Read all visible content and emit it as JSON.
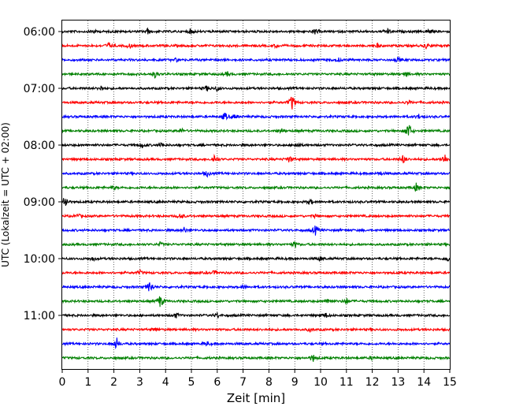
{
  "chart_data": {
    "type": "line",
    "xlabel": "Zeit  [min]",
    "ylabel": "UTC (Lokalzeit = UTC + 02:00)",
    "xlim": [
      0,
      15
    ],
    "x_ticks": [
      "0",
      "1",
      "2",
      "3",
      "4",
      "5",
      "6",
      "7",
      "8",
      "9",
      "10",
      "11",
      "12",
      "13",
      "14",
      "15"
    ],
    "y_tick_labels": [
      "06:00",
      "07:00",
      "08:00",
      "09:00",
      "10:00",
      "11:00"
    ],
    "grid": "vertical-dotted",
    "trace_colors": [
      "#000000",
      "#ff0000",
      "#0000ff",
      "#008000"
    ],
    "traces": [
      {
        "start": "06:00",
        "events": [
          [
            1.2,
            0.25
          ],
          [
            3.3,
            0.3
          ],
          [
            5.0,
            0.35
          ],
          [
            9.8,
            0.35
          ],
          [
            12.6,
            0.3
          ],
          [
            14.2,
            0.3
          ]
        ]
      },
      {
        "start": "06:15",
        "events": [
          [
            1.8,
            0.35
          ],
          [
            2.6,
            0.25
          ],
          [
            8.3,
            0.2
          ],
          [
            12.2,
            0.2
          ],
          [
            14.1,
            0.3
          ]
        ]
      },
      {
        "start": "06:30",
        "events": [
          [
            4.4,
            0.2
          ],
          [
            10.7,
            0.2
          ],
          [
            13.0,
            0.25
          ]
        ]
      },
      {
        "start": "06:45",
        "events": [
          [
            3.6,
            0.45
          ],
          [
            6.4,
            0.25
          ],
          [
            13.3,
            0.3
          ]
        ]
      },
      {
        "start": "07:00",
        "events": [
          [
            1.5,
            0.3
          ],
          [
            5.6,
            0.3
          ],
          [
            6.0,
            0.3
          ]
        ]
      },
      {
        "start": "07:15",
        "events": [
          [
            8.9,
            1.0
          ],
          [
            13.4,
            0.2
          ]
        ]
      },
      {
        "start": "07:30",
        "events": [
          [
            6.3,
            0.5
          ],
          [
            6.7,
            0.25
          ],
          [
            13.8,
            0.25
          ]
        ]
      },
      {
        "start": "07:45",
        "events": [
          [
            4.6,
            0.3
          ],
          [
            8.5,
            0.3
          ],
          [
            13.4,
            1.1
          ]
        ]
      },
      {
        "start": "08:00",
        "events": [
          [
            3.1,
            0.25
          ],
          [
            3.8,
            0.3
          ],
          [
            9.1,
            0.3
          ]
        ]
      },
      {
        "start": "08:15",
        "events": [
          [
            5.9,
            0.6
          ],
          [
            8.8,
            0.4
          ],
          [
            13.2,
            0.5
          ],
          [
            14.8,
            0.7
          ]
        ]
      },
      {
        "start": "08:30",
        "events": [
          [
            5.6,
            0.35
          ],
          [
            12.3,
            0.2
          ]
        ]
      },
      {
        "start": "08:45",
        "events": [
          [
            2.0,
            0.2
          ],
          [
            13.7,
            0.45
          ]
        ]
      },
      {
        "start": "09:00",
        "events": [
          [
            0.1,
            0.9
          ],
          [
            9.6,
            0.3
          ]
        ]
      },
      {
        "start": "09:15",
        "events": [
          [
            0.6,
            0.25
          ],
          [
            4.6,
            0.35
          ],
          [
            9.8,
            0.2
          ]
        ]
      },
      {
        "start": "09:30",
        "events": [
          [
            4.7,
            0.4
          ],
          [
            9.8,
            0.55
          ]
        ]
      },
      {
        "start": "09:45",
        "events": [
          [
            3.8,
            0.25
          ],
          [
            9.0,
            0.35
          ]
        ]
      },
      {
        "start": "10:00",
        "events": [
          [
            1.2,
            0.25
          ],
          [
            10.0,
            0.25
          ],
          [
            14.9,
            0.35
          ]
        ]
      },
      {
        "start": "10:15",
        "events": [
          [
            3.0,
            0.25
          ],
          [
            5.9,
            0.25
          ]
        ]
      },
      {
        "start": "10:30",
        "events": [
          [
            3.4,
            0.85
          ],
          [
            7.0,
            0.2
          ]
        ]
      },
      {
        "start": "10:45",
        "events": [
          [
            3.8,
            0.85
          ],
          [
            10.3,
            0.35
          ],
          [
            11.0,
            0.35
          ]
        ]
      },
      {
        "start": "11:00",
        "events": [
          [
            4.4,
            0.3
          ],
          [
            6.0,
            0.3
          ],
          [
            10.2,
            0.3
          ]
        ]
      },
      {
        "start": "11:15",
        "events": [
          [
            3.6,
            0.2
          ],
          [
            9.6,
            0.2
          ]
        ]
      },
      {
        "start": "11:30",
        "events": [
          [
            2.1,
            0.75
          ],
          [
            5.6,
            0.25
          ]
        ]
      },
      {
        "start": "11:45",
        "events": [
          [
            9.7,
            0.45
          ],
          [
            12.0,
            0.2
          ]
        ]
      }
    ]
  }
}
